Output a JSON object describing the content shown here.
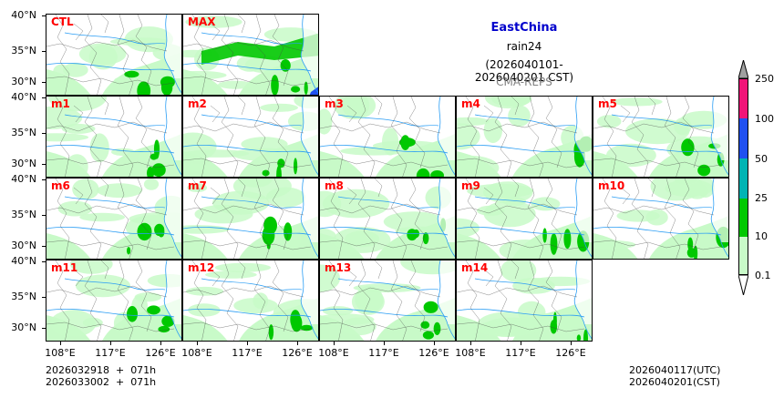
{
  "title": {
    "region": "EastChina",
    "variable": "rain24",
    "period": "(2026040101-2026040201 CST)",
    "model": "CMA-REPS"
  },
  "colors": {
    "region_title": "#0000cc",
    "model": "#808080",
    "panel_label": "#ff0000"
  },
  "panels": [
    "CTL",
    "MAX",
    "m1",
    "m2",
    "m3",
    "m4",
    "m5",
    "m6",
    "m7",
    "m8",
    "m9",
    "m10",
    "m11",
    "m12",
    "m13",
    "m14"
  ],
  "lat_labels": [
    "40°N",
    "35°N",
    "30°N"
  ],
  "lon_labels": [
    "108°E",
    "117°E",
    "126°E"
  ],
  "colorbar": {
    "levels": [
      "0.1",
      "10",
      "25",
      "50",
      "100",
      "250"
    ],
    "colors": [
      "#c8fac8",
      "#00c800",
      "#00b4b4",
      "#2050f0",
      "#f01478"
    ],
    "extend_min_color": "#ffffff",
    "extend_max_color": "#a0a0a0"
  },
  "footer": {
    "init_utc": "2026032918  +  071h",
    "init_cst": "2026033002  +  071h",
    "valid_utc": "2026040117(UTC)",
    "valid_cst": "2026040201(CST)"
  }
}
